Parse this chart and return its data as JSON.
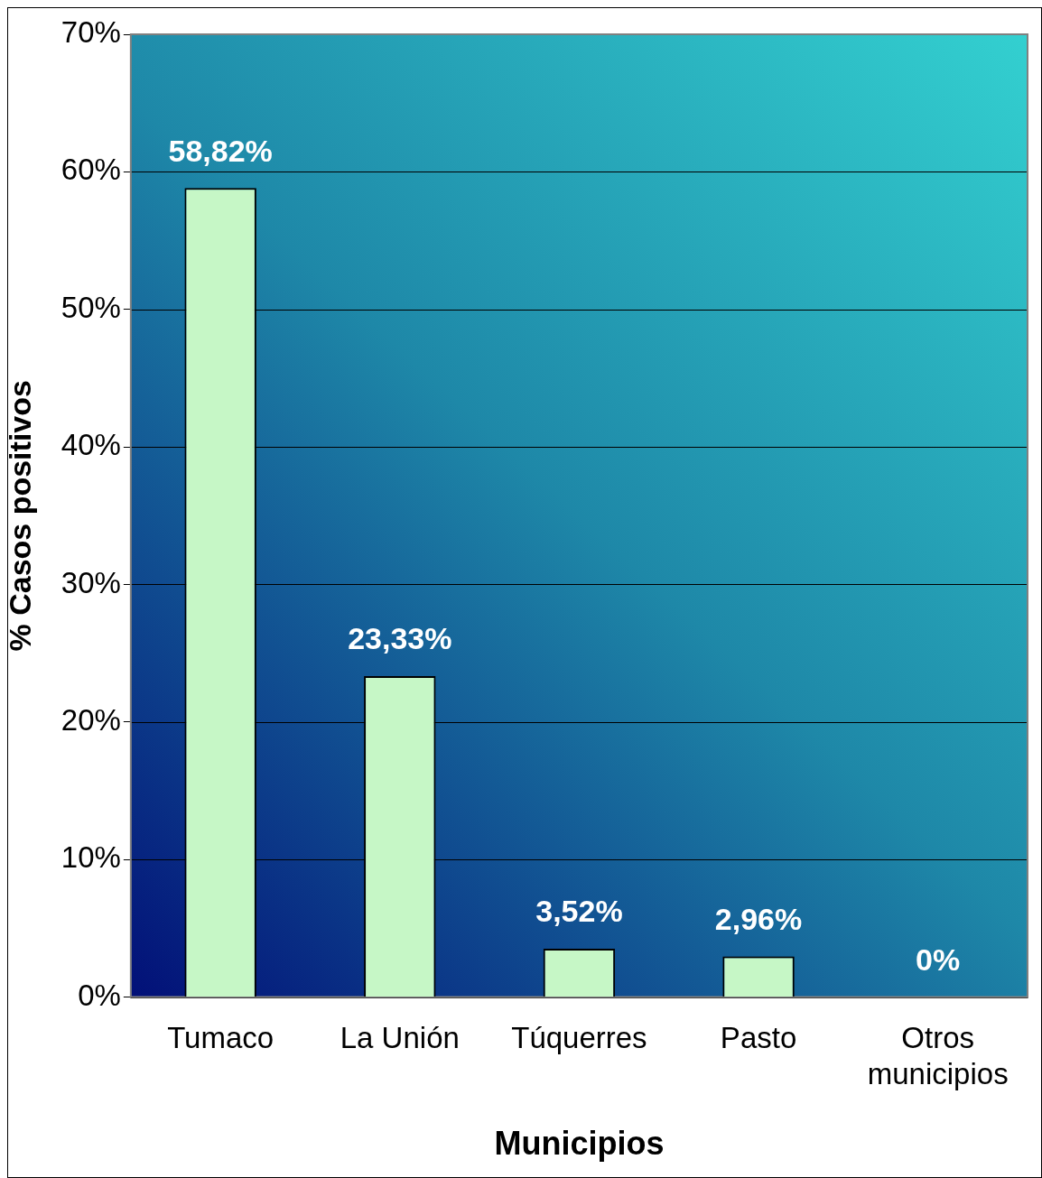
{
  "chart_data": {
    "type": "bar",
    "xlabel": "Municipios",
    "ylabel": "% Casos positivos",
    "categories": [
      "Tumaco",
      "La Unión",
      "Túquerres",
      "Pasto",
      "Otros municipios"
    ],
    "values": [
      58.82,
      23.33,
      3.52,
      2.96,
      0
    ],
    "value_labels": [
      "58,82%",
      "23,33%",
      "3,52%",
      "2,96%",
      "0%"
    ],
    "color": "#c6f7c6",
    "ylim": [
      0,
      70
    ],
    "yticks": [
      {
        "value": 0,
        "label": "0%"
      },
      {
        "value": 10,
        "label": "10%"
      },
      {
        "value": 20,
        "label": "20%"
      },
      {
        "value": 30,
        "label": "30%"
      },
      {
        "value": 40,
        "label": "40%"
      },
      {
        "value": 50,
        "label": "50%"
      },
      {
        "value": 60,
        "label": "60%"
      },
      {
        "value": 70,
        "label": "70%"
      }
    ],
    "grid": "y",
    "legend": false
  }
}
